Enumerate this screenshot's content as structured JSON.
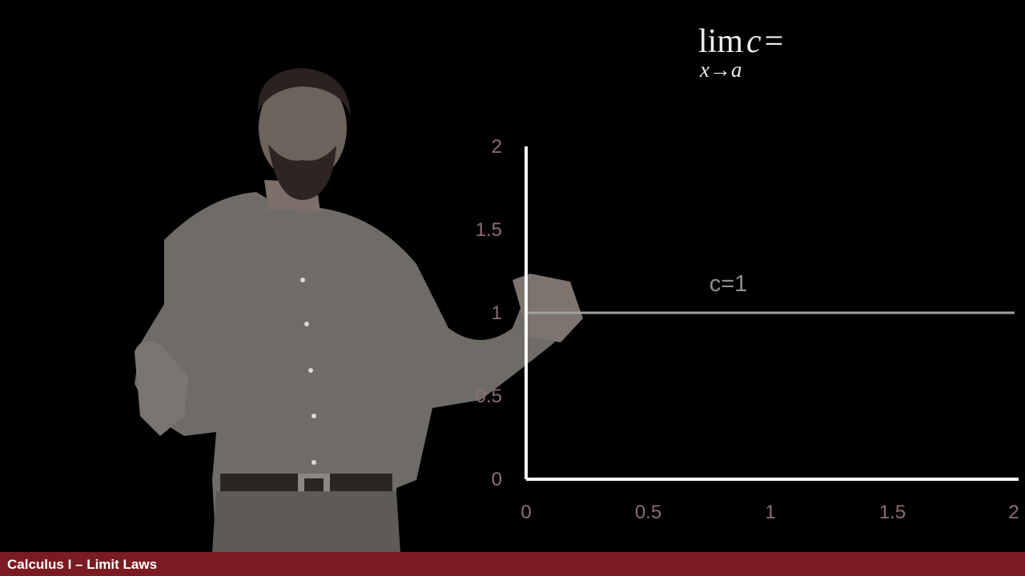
{
  "formula": {
    "lim": "lim",
    "variable": "c",
    "equals": "=",
    "subscript": "x→a"
  },
  "chart_data": {
    "type": "line",
    "xlim": [
      0,
      2
    ],
    "ylim": [
      0,
      2
    ],
    "x_ticks": [
      "0",
      "0.5",
      "1",
      "1.5",
      "2"
    ],
    "y_ticks": [
      "2",
      "1.5",
      "1",
      "0.5",
      "0"
    ],
    "series": [
      {
        "x": [
          0,
          2
        ],
        "y": [
          1,
          1
        ]
      }
    ],
    "annotation": {
      "text": "c=1",
      "x": 0.75,
      "y": 1.13
    },
    "colors": {
      "axis": "#ffffff",
      "line": "#a0a0a0",
      "tick_label": "#8c6e72"
    }
  },
  "footer": {
    "title": "Calculus I – Limit Laws"
  }
}
